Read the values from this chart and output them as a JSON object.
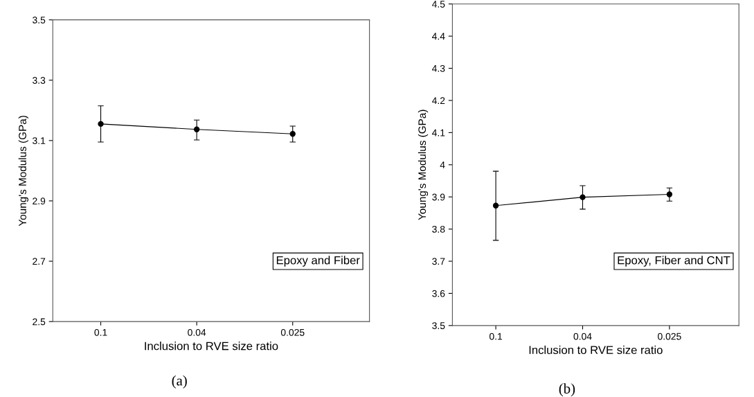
{
  "chart_data": [
    {
      "type": "line",
      "xlabel": "Inclusion to RVE size ratio",
      "ylabel": "Young's Modulus (GPa)",
      "categories": [
        "0.1",
        "0.04",
        "0.025"
      ],
      "series": [
        {
          "color": "#000000",
          "values": [
            3.155,
            3.137,
            3.122
          ],
          "errors": [
            [
              3.095,
              3.215
            ],
            [
              3.102,
              3.168
            ],
            [
              3.095,
              3.148
            ]
          ]
        }
      ],
      "ylim": [
        2.5,
        3.5
      ],
      "yticks": [
        2.5,
        2.7,
        2.9,
        3.1,
        3.3,
        3.5
      ],
      "marker": "circle",
      "grid": false,
      "legend": false,
      "annotations": [
        "Epoxy and Fiber",
        "(a)"
      ]
    },
    {
      "type": "line",
      "xlabel": "Inclusion to RVE size ratio",
      "ylabel": "Young's Modulus (GPa)",
      "categories": [
        "0.1",
        "0.04",
        "0.025"
      ],
      "series": [
        {
          "color": "#000000",
          "values": [
            3.873,
            3.899,
            3.908
          ],
          "errors": [
            [
              3.765,
              3.98
            ],
            [
              3.862,
              3.935
            ],
            [
              3.887,
              3.928
            ]
          ]
        }
      ],
      "ylim": [
        3.5,
        4.5
      ],
      "yticks": [
        3.5,
        3.6,
        3.7,
        3.8,
        3.9,
        {
          "value": 4.0,
          "label": "4"
        },
        4.1,
        4.2,
        4.3,
        4.4,
        4.5
      ],
      "marker": "circle",
      "grid": false,
      "legend": false,
      "annotations": [
        "Epoxy, Fiber and CNT",
        "(b)"
      ]
    }
  ]
}
